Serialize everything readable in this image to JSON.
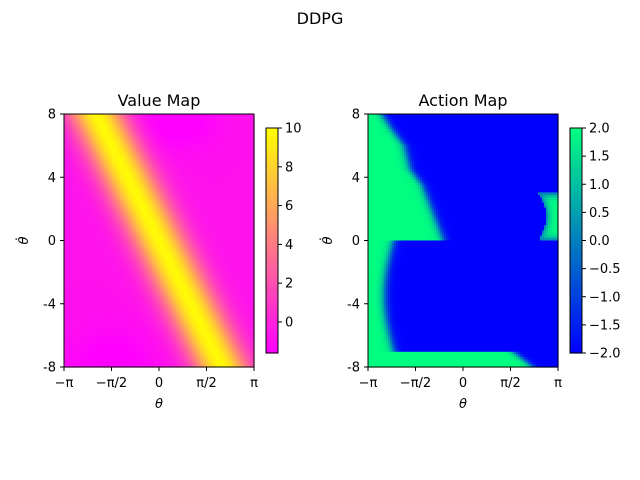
{
  "suptitle": "DDPG",
  "chart_data": [
    {
      "type": "heatmap",
      "title": "Value Map",
      "xlabel": "θ",
      "ylabel": "θ̇",
      "xlim": [
        -3.14159,
        3.14159
      ],
      "ylim": [
        8,
        -8
      ],
      "xticks": [
        -3.14159,
        -1.5708,
        0,
        1.5708,
        3.14159
      ],
      "xtick_labels": [
        "−π",
        "−π/2",
        "0",
        "π/2",
        "π"
      ],
      "yticks": [
        -8,
        -4,
        0,
        4,
        8
      ],
      "ytick_labels": [
        "-8",
        "-4",
        "0",
        "4",
        "8"
      ],
      "colormap": "spring",
      "colormap_colors": [
        "#ff00ff",
        "#ffff00"
      ],
      "vmin": -1.6,
      "vmax": 10,
      "colorbar_ticks": [
        0,
        2,
        4,
        6,
        8,
        10
      ],
      "colorbar_tick_labels": [
        "0",
        "2",
        "4",
        "6",
        "8",
        "10"
      ],
      "description_of_field": "Ridge of maximum value (~10) runs diagonally from (θ≈-π/2, θ̇≈6) through (0,0) to (θ≈π/2, θ̇≈-6); value decreases away from ridge to ~-1 near (θ≈-π, θ̇≈0), (θ≈π, θ̇≈0), (θ≈0.5, θ̇≈8), (θ≈-1.5, θ̇≈-8).",
      "grid": false
    },
    {
      "type": "heatmap",
      "title": "Action Map",
      "xlabel": "θ",
      "ylabel": "θ̇",
      "xlim": [
        -3.14159,
        3.14159
      ],
      "ylim": [
        8,
        -8
      ],
      "xticks": [
        -3.14159,
        -1.5708,
        0,
        1.5708,
        3.14159
      ],
      "xtick_labels": [
        "−π",
        "−π/2",
        "0",
        "π/2",
        "π"
      ],
      "yticks": [
        -8,
        -4,
        0,
        4,
        8
      ],
      "ytick_labels": [
        "-8",
        "-4",
        "0",
        "4",
        "8"
      ],
      "colormap": "winter",
      "colormap_colors": [
        "#0000ff",
        "#00ff80"
      ],
      "vmin": -2,
      "vmax": 2,
      "colorbar_ticks": [
        -2.0,
        -1.5,
        -1.0,
        -0.5,
        0.0,
        0.5,
        1.0,
        1.5,
        2.0
      ],
      "colorbar_tick_labels": [
        "−2.0",
        "−1.5",
        "−1.0",
        "−0.5",
        "0.0",
        "0.5",
        "1.0",
        "1.5",
        "2.0"
      ],
      "regions": [
        {
          "value": 2.0,
          "area": "upper-left band and diagonal strip from (θ=-π, θ̇=8) up to (θ=π, θ̇=-8)"
        },
        {
          "value": -2.0,
          "area": "lower-right region below the diagonal boundary"
        },
        {
          "value": -2.0,
          "area": "small pocket at θ≈-π..-2.2, θ̇≈-7..0"
        },
        {
          "value": 2.0,
          "area": "small pocket at θ≈2.5..π, θ̇≈0..2.5"
        }
      ],
      "grid": false
    }
  ]
}
